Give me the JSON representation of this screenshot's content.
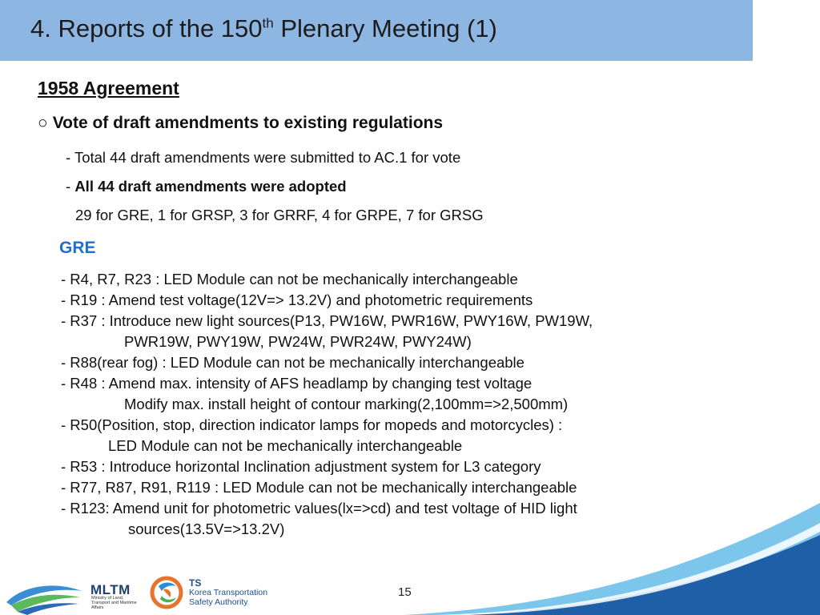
{
  "header": {
    "title_prefix": "4. Reports of the 150",
    "title_sup": "th",
    "title_suffix": " Plenary Meeting (1)"
  },
  "section": {
    "agreement": "1958 Agreement",
    "bullet": "○",
    "vote_title": "Vote of draft amendments to existing regulations",
    "line1": "- Total 44 draft amendments were submitted to AC.1 for vote",
    "line2_dash": "- ",
    "line2_bold": "All 44 draft amendments were adopted",
    "line3": "29 for GRE, 1 for GRSP, 3 for GRRF, 4 for GRPE, 7 for GRSG"
  },
  "gre": {
    "heading": "GRE",
    "items": [
      "- R4, R7, R23 : LED Module can not be mechanically interchangeable",
      "- R19 : Amend test voltage(12V=> 13.2V) and photometric requirements",
      "- R37 : Introduce new light sources(P13, PW16W, PWR16W, PWY16W, PW19W,",
      "PWR19W, PWY19W, PW24W, PWR24W, PWY24W)",
      "- R88(rear fog) : LED Module can not be mechanically interchangeable",
      "- R48 : Amend max. intensity of AFS headlamp by changing test voltage",
      "Modify max. install height of contour marking(2,100mm=>2,500mm)",
      "- R50(Position, stop, direction indicator lamps for mopeds and motorcycles) :",
      "LED Module can not be mechanically interchangeable",
      "- R53 : Introduce horizontal Inclination adjustment system for L3 category",
      "- R77, R87, R91, R119 : LED Module can not be mechanically interchangeable",
      "- R123: Amend unit for photometric values(lx=>cd) and test voltage of HID light",
      "sources(13.5V=>13.2V)"
    ]
  },
  "footer": {
    "page_number": "15",
    "mltm_name": "MLTM",
    "mltm_sub": "Ministry of Land, Transport and Maritime Affairs",
    "ts_name": "TS",
    "ts_sub": "Korea Transportation Safety Authority"
  },
  "colors": {
    "title_bar": "#8db6e2",
    "gre_heading": "#1f6fd1",
    "swoosh_light": "#7cc6ec",
    "swoosh_dark": "#1f5fa8"
  }
}
